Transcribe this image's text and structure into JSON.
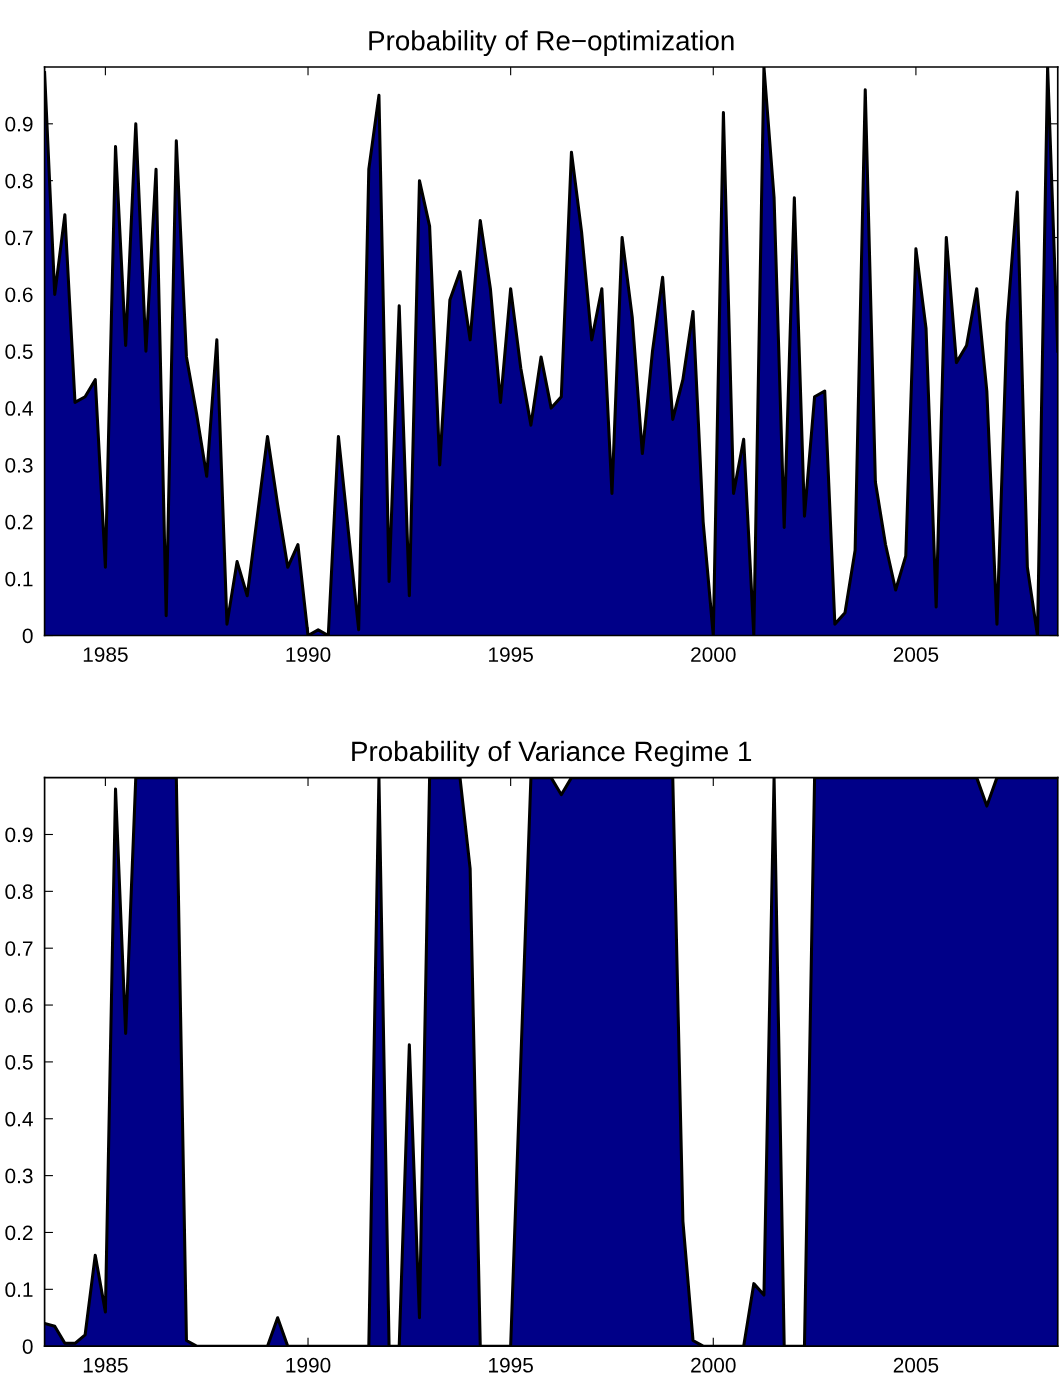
{
  "chart_data": [
    {
      "type": "area",
      "title": "Probability of Re−optimization",
      "x": [
        1983.5,
        1983.75,
        1984,
        1984.25,
        1984.5,
        1984.75,
        1985,
        1985.25,
        1985.5,
        1985.75,
        1986,
        1986.25,
        1986.5,
        1986.75,
        1987,
        1987.25,
        1987.5,
        1987.75,
        1988,
        1988.25,
        1988.5,
        1988.75,
        1989,
        1989.25,
        1989.5,
        1989.75,
        1990,
        1990.25,
        1990.5,
        1990.75,
        1991,
        1991.25,
        1991.5,
        1991.75,
        1992,
        1992.25,
        1992.5,
        1992.75,
        1993,
        1993.25,
        1993.5,
        1993.75,
        1994,
        1994.25,
        1994.5,
        1994.75,
        1995,
        1995.25,
        1995.5,
        1995.75,
        1996,
        1996.25,
        1996.5,
        1996.75,
        1997,
        1997.25,
        1997.5,
        1997.75,
        1998,
        1998.25,
        1998.5,
        1998.75,
        1999,
        1999.25,
        1999.5,
        1999.75,
        2000,
        2000.25,
        2000.5,
        2000.75,
        2001,
        2001.25,
        2001.5,
        2001.75,
        2002,
        2002.25,
        2002.5,
        2002.75,
        2003,
        2003.25,
        2003.5,
        2003.75,
        2004,
        2004.25,
        2004.5,
        2004.75,
        2005,
        2005.25,
        2005.5,
        2005.75,
        2006,
        2006.25,
        2006.5,
        2006.75,
        2007,
        2007.25,
        2007.5,
        2007.75,
        2008,
        2008.25,
        2008.5
      ],
      "series": [
        {
          "color": "#000088",
          "values": [
            0.99,
            0.6,
            0.74,
            0.41,
            0.42,
            0.45,
            0.12,
            0.86,
            0.51,
            0.9,
            0.5,
            0.82,
            0.035,
            0.87,
            0.49,
            0.39,
            0.28,
            0.52,
            0.02,
            0.13,
            0.07,
            0.21,
            0.35,
            0.23,
            0.12,
            0.16,
            0.0,
            0.01,
            0.0,
            0.35,
            0.18,
            0.01,
            0.82,
            0.95,
            0.095,
            0.58,
            0.07,
            0.8,
            0.72,
            0.3,
            0.59,
            0.64,
            0.52,
            0.73,
            0.61,
            0.41,
            0.61,
            0.47,
            0.37,
            0.49,
            0.4,
            0.42,
            0.85,
            0.71,
            0.52,
            0.61,
            0.25,
            0.7,
            0.56,
            0.32,
            0.5,
            0.63,
            0.38,
            0.45,
            0.57,
            0.2,
            0.0,
            0.92,
            0.25,
            0.345,
            0.0,
            1.0,
            0.77,
            0.19,
            0.77,
            0.21,
            0.42,
            0.43,
            0.02,
            0.04,
            0.15,
            0.96,
            0.27,
            0.16,
            0.08,
            0.14,
            0.68,
            0.54,
            0.05,
            0.7,
            0.48,
            0.51,
            0.61,
            0.43,
            0.02,
            0.55,
            0.78,
            0.12,
            0.0,
            1.0,
            0.5
          ]
        }
      ],
      "xlim": [
        1983.5,
        2008.5
      ],
      "xticks": [
        1985,
        1990,
        1995,
        2000,
        2005
      ],
      "ylim": [
        0,
        1
      ],
      "yticks": [
        0,
        0.1,
        0.2,
        0.3,
        0.4,
        0.5,
        0.6,
        0.7,
        0.8,
        0.9
      ],
      "grid": false,
      "legend": false
    },
    {
      "type": "area",
      "title": "Probability of Variance Regime 1",
      "x": [
        1983.5,
        1983.75,
        1984,
        1984.25,
        1984.5,
        1984.75,
        1985,
        1985.25,
        1985.5,
        1985.75,
        1986,
        1986.25,
        1986.5,
        1986.75,
        1987,
        1987.25,
        1987.5,
        1987.75,
        1988,
        1988.25,
        1988.5,
        1988.75,
        1989,
        1989.25,
        1989.5,
        1989.75,
        1990,
        1990.25,
        1990.5,
        1990.75,
        1991,
        1991.25,
        1991.5,
        1991.75,
        1992,
        1992.25,
        1992.5,
        1992.75,
        1993,
        1993.25,
        1993.5,
        1993.75,
        1994,
        1994.25,
        1994.5,
        1994.75,
        1995,
        1995.25,
        1995.5,
        1995.75,
        1996,
        1996.25,
        1996.5,
        1996.75,
        1997,
        1997.25,
        1997.5,
        1997.75,
        1998,
        1998.25,
        1998.5,
        1998.75,
        1999,
        1999.25,
        1999.5,
        1999.75,
        2000,
        2000.25,
        2000.5,
        2000.75,
        2001,
        2001.25,
        2001.5,
        2001.75,
        2002,
        2002.25,
        2002.5,
        2002.75,
        2003,
        2003.25,
        2003.5,
        2003.75,
        2004,
        2004.25,
        2004.5,
        2004.75,
        2005,
        2005.25,
        2005.5,
        2005.75,
        2006,
        2006.25,
        2006.5,
        2006.75,
        2007,
        2007.25,
        2007.5,
        2007.75,
        2008,
        2008.25,
        2008.5
      ],
      "series": [
        {
          "color": "#000088",
          "values": [
            0.04,
            0.035,
            0.005,
            0.005,
            0.02,
            0.16,
            0.06,
            0.98,
            0.55,
            1,
            1,
            1,
            1,
            1,
            0.01,
            0,
            0,
            0,
            0,
            0,
            0,
            0,
            0,
            0.05,
            0,
            0,
            0,
            0,
            0,
            0,
            0,
            0,
            0,
            1,
            0,
            0,
            0.53,
            0.05,
            1,
            1,
            1,
            1,
            0.84,
            0,
            0,
            0,
            0,
            0.5,
            1,
            1,
            1,
            0.97,
            1,
            1,
            1,
            1,
            1,
            1,
            1,
            1,
            1,
            1,
            1,
            0.22,
            0.01,
            0,
            0,
            0,
            0,
            0,
            0.11,
            0.09,
            1,
            0,
            0,
            0,
            1,
            1,
            1,
            1,
            1,
            1,
            1,
            1,
            1,
            1,
            1,
            1,
            1,
            1,
            1,
            1,
            1,
            0.95,
            1,
            1,
            1,
            1,
            1,
            1,
            1
          ]
        }
      ],
      "xlim": [
        1983.5,
        2008.5
      ],
      "xticks": [
        1985,
        1990,
        1995,
        2000,
        2005
      ],
      "ylim": [
        0,
        1
      ],
      "yticks": [
        0,
        0.1,
        0.2,
        0.3,
        0.4,
        0.5,
        0.6,
        0.7,
        0.8,
        0.9
      ],
      "grid": false,
      "legend": false
    }
  ]
}
